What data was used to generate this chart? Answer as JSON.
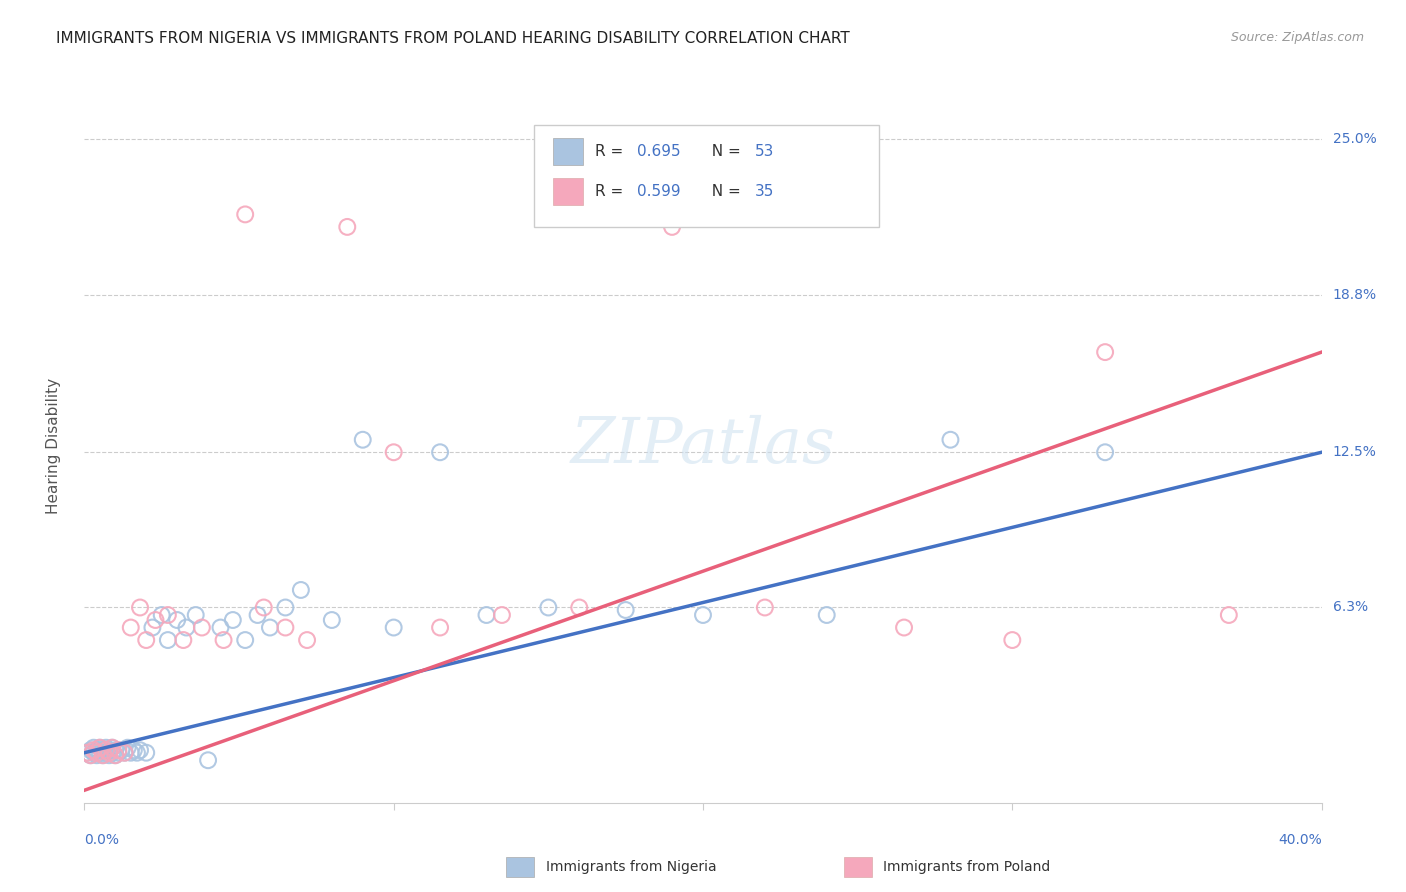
{
  "title": "IMMIGRANTS FROM NIGERIA VS IMMIGRANTS FROM POLAND HEARING DISABILITY CORRELATION CHART",
  "source": "Source: ZipAtlas.com",
  "ylabel": "Hearing Disability",
  "yticks_labels": [
    "25.0%",
    "18.8%",
    "12.5%",
    "6.3%"
  ],
  "ytick_vals": [
    0.25,
    0.188,
    0.125,
    0.063
  ],
  "xlim": [
    0.0,
    0.4
  ],
  "ylim": [
    -0.015,
    0.27
  ],
  "nigeria_R": "0.695",
  "nigeria_N": "53",
  "poland_R": "0.599",
  "poland_N": "35",
  "nigeria_color": "#aac4e0",
  "poland_color": "#f5a8bc",
  "nigeria_line_color": "#4472c4",
  "poland_line_color": "#e8607a",
  "nigeria_x": [
    0.001,
    0.002,
    0.002,
    0.003,
    0.003,
    0.004,
    0.004,
    0.005,
    0.005,
    0.006,
    0.006,
    0.007,
    0.007,
    0.008,
    0.008,
    0.009,
    0.009,
    0.01,
    0.01,
    0.011,
    0.012,
    0.013,
    0.014,
    0.015,
    0.016,
    0.017,
    0.018,
    0.02,
    0.022,
    0.025,
    0.027,
    0.03,
    0.033,
    0.036,
    0.04,
    0.044,
    0.048,
    0.052,
    0.056,
    0.06,
    0.065,
    0.07,
    0.08,
    0.09,
    0.1,
    0.115,
    0.13,
    0.15,
    0.175,
    0.2,
    0.24,
    0.28,
    0.33
  ],
  "nigeria_y": [
    0.005,
    0.004,
    0.006,
    0.005,
    0.007,
    0.004,
    0.006,
    0.005,
    0.007,
    0.004,
    0.006,
    0.005,
    0.007,
    0.004,
    0.006,
    0.005,
    0.007,
    0.004,
    0.006,
    0.005,
    0.006,
    0.005,
    0.007,
    0.005,
    0.006,
    0.005,
    0.006,
    0.005,
    0.055,
    0.06,
    0.05,
    0.058,
    0.055,
    0.06,
    0.002,
    0.055,
    0.058,
    0.05,
    0.06,
    0.055,
    0.063,
    0.07,
    0.058,
    0.13,
    0.055,
    0.125,
    0.06,
    0.063,
    0.062,
    0.06,
    0.06,
    0.13,
    0.125
  ],
  "poland_x": [
    0.001,
    0.002,
    0.003,
    0.004,
    0.005,
    0.006,
    0.007,
    0.008,
    0.009,
    0.01,
    0.011,
    0.013,
    0.015,
    0.018,
    0.02,
    0.023,
    0.027,
    0.032,
    0.038,
    0.045,
    0.052,
    0.058,
    0.065,
    0.072,
    0.085,
    0.1,
    0.115,
    0.135,
    0.16,
    0.19,
    0.22,
    0.265,
    0.3,
    0.33,
    0.37
  ],
  "poland_y": [
    0.005,
    0.004,
    0.006,
    0.005,
    0.007,
    0.004,
    0.006,
    0.005,
    0.007,
    0.004,
    0.006,
    0.005,
    0.055,
    0.063,
    0.05,
    0.058,
    0.06,
    0.05,
    0.055,
    0.05,
    0.22,
    0.063,
    0.055,
    0.05,
    0.215,
    0.125,
    0.055,
    0.06,
    0.063,
    0.215,
    0.063,
    0.055,
    0.05,
    0.165,
    0.06
  ],
  "ng_line_x0": 0.0,
  "ng_line_y0": 0.005,
  "ng_line_x1": 0.4,
  "ng_line_y1": 0.125,
  "pl_line_x0": 0.0,
  "pl_line_y0": -0.01,
  "pl_line_x1": 0.4,
  "pl_line_y1": 0.165
}
